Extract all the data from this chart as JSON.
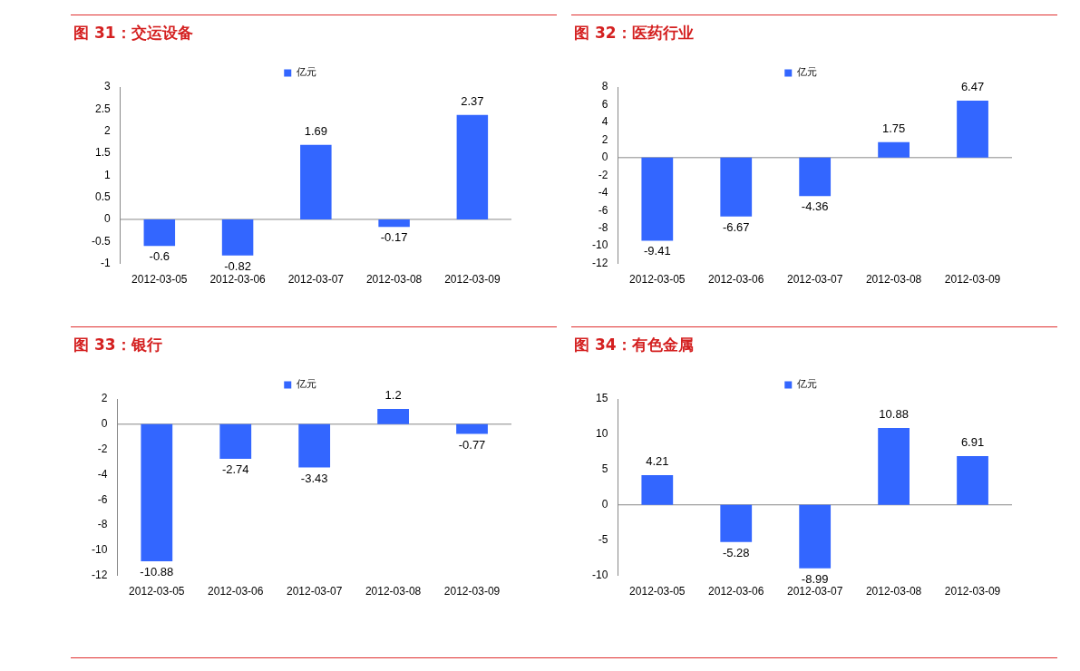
{
  "chart_data": [
    {
      "type": "bar",
      "title": "图 31：交运设备",
      "categories": [
        "2012-03-05",
        "2012-03-06",
        "2012-03-07",
        "2012-03-08",
        "2012-03-09"
      ],
      "series": [
        {
          "name": "亿元",
          "color": "#3366ff",
          "values": [
            -0.6,
            -0.82,
            1.69,
            -0.17,
            2.37
          ]
        }
      ],
      "ylim": [
        -1,
        3
      ],
      "yticks": [
        -1,
        -0.5,
        0,
        0.5,
        1,
        1.5,
        2,
        2.5,
        3
      ],
      "data_labels": true,
      "legend": "top"
    },
    {
      "type": "bar",
      "title": "图 32：医药行业",
      "categories": [
        "2012-03-05",
        "2012-03-06",
        "2012-03-07",
        "2012-03-08",
        "2012-03-09"
      ],
      "series": [
        {
          "name": "亿元",
          "color": "#3366ff",
          "values": [
            -9.41,
            -6.67,
            -4.36,
            1.75,
            6.47
          ]
        }
      ],
      "ylim": [
        -12,
        8
      ],
      "yticks": [
        -12,
        -10,
        -8,
        -6,
        -4,
        -2,
        0,
        2,
        4,
        6,
        8
      ],
      "data_labels": true,
      "legend": "top"
    },
    {
      "type": "bar",
      "title": "图 33：银行",
      "categories": [
        "2012-03-05",
        "2012-03-06",
        "2012-03-07",
        "2012-03-08",
        "2012-03-09"
      ],
      "series": [
        {
          "name": "亿元",
          "color": "#3366ff",
          "values": [
            -10.88,
            -2.74,
            -3.43,
            1.2,
            -0.77
          ]
        }
      ],
      "ylim": [
        -12,
        2
      ],
      "yticks": [
        -12,
        -10,
        -8,
        -6,
        -4,
        -2,
        0,
        2
      ],
      "data_labels": true,
      "legend": "top"
    },
    {
      "type": "bar",
      "title": "图 34：有色金属",
      "categories": [
        "2012-03-05",
        "2012-03-06",
        "2012-03-07",
        "2012-03-08",
        "2012-03-09"
      ],
      "series": [
        {
          "name": "亿元",
          "color": "#3366ff",
          "values": [
            4.21,
            -5.28,
            -8.99,
            10.88,
            6.91
          ]
        }
      ],
      "ylim": [
        -10,
        15
      ],
      "yticks": [
        -10,
        -5,
        0,
        5,
        10,
        15
      ],
      "data_labels": true,
      "legend": "top"
    }
  ]
}
